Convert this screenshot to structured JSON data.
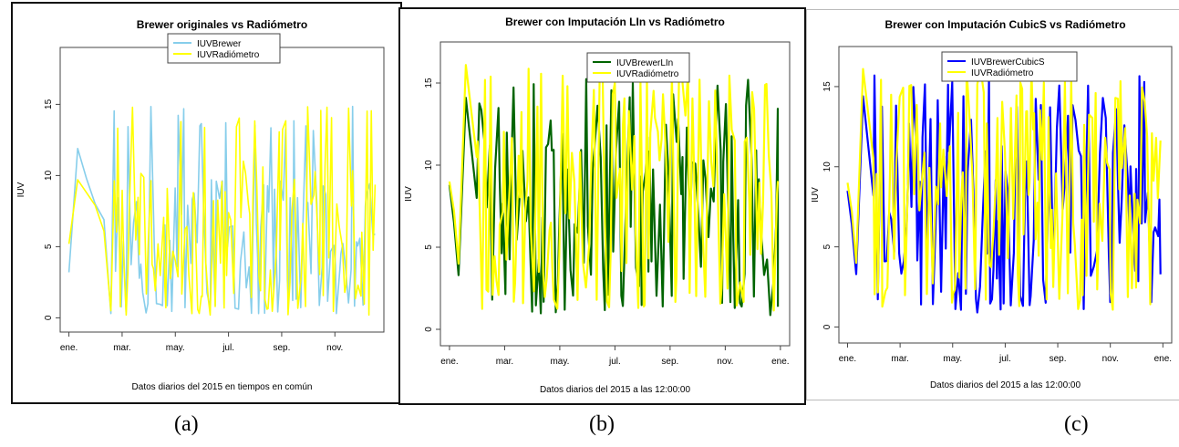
{
  "chart_data": [
    {
      "type": "line",
      "title": "Brewer originales vs Radiómetro",
      "xlabel": "Datos diarios del 2015 en tiempos en común",
      "ylabel": "IUV",
      "xticks": [
        "ene.",
        "mar.",
        "may.",
        "jul.",
        "sep.",
        "nov."
      ],
      "yticks": [
        "0",
        "5",
        "10",
        "15"
      ],
      "ylim": [
        -1,
        19
      ],
      "xlim_days": [
        -10,
        360
      ],
      "legend_position": "top-center",
      "series": [
        {
          "name": "IUVBrewer",
          "color": "#87CEEB",
          "seed": 11,
          "base": 5,
          "amp": 5,
          "min": 0.3,
          "max": 15,
          "x": [
            0,
            10,
            20,
            30,
            40,
            48
          ],
          "values": [
            3.2,
            11.9,
            9.8,
            8.0,
            6.9,
            0.3
          ]
        },
        {
          "name": "IUVRadiómetro",
          "color": "#FFFF00",
          "seed": 23,
          "base": 5.5,
          "amp": 6,
          "min": 0.2,
          "max": 15,
          "x": [
            0,
            10,
            20,
            30,
            40,
            48
          ],
          "values": [
            5.2,
            9.7,
            8.8,
            7.9,
            6.1,
            0.5
          ]
        }
      ]
    },
    {
      "type": "line",
      "title": "Brewer con Imputación LIn vs Radiómetro",
      "xlabel": "Datos diarios del 2015 a las 12:00:00",
      "ylabel": "IUV",
      "xticks": [
        "ene.",
        "mar.",
        "may.",
        "jul.",
        "sep.",
        "nov.",
        "ene."
      ],
      "yticks": [
        "0",
        "5",
        "10",
        "15"
      ],
      "ylim": [
        -1,
        17.5
      ],
      "xlim_days": [
        -10,
        375
      ],
      "legend_position": "top-center",
      "series": [
        {
          "name": "IUVBrewerLIn",
          "color": "#006400",
          "seed": 37,
          "base": 7.5,
          "amp": 6.5,
          "min": 0.8,
          "max": 15.5,
          "x": [
            0,
            5,
            10,
            18,
            30
          ],
          "values": [
            8.8,
            6.5,
            3.3,
            14.1,
            8.0
          ]
        },
        {
          "name": "IUVRadiómetro",
          "color": "#FFFF00",
          "seed": 53,
          "base": 8.5,
          "amp": 7,
          "min": 1.0,
          "max": 16.3,
          "x": [
            0,
            5,
            10,
            18,
            30
          ],
          "values": [
            9.0,
            7.2,
            4.0,
            16.1,
            10.5
          ]
        }
      ]
    },
    {
      "type": "line",
      "title": "Brewer con Imputación CubicS vs Radiómetro",
      "xlabel": "Datos diarios del 2015 a las 12:00:00",
      "ylabel": "IUV",
      "xticks": [
        "ene.",
        "mar.",
        "may.",
        "jul.",
        "sep.",
        "nov.",
        "ene."
      ],
      "yticks": [
        "0",
        "5",
        "10",
        "15"
      ],
      "ylim": [
        -1,
        17.5
      ],
      "xlim_days": [
        -10,
        375
      ],
      "legend_position": "top-center",
      "series": [
        {
          "name": "IUVBrewerCubicS",
          "color": "#0000FF",
          "seed": 71,
          "base": 7.5,
          "amp": 6.5,
          "min": 0.8,
          "max": 15.7,
          "x": [
            0,
            5,
            10,
            18,
            30
          ],
          "values": [
            8.5,
            6.4,
            3.3,
            14.4,
            8.2
          ]
        },
        {
          "name": "IUVRadiómetro",
          "color": "#FFFF00",
          "seed": 89,
          "base": 8.5,
          "amp": 7,
          "min": 1.0,
          "max": 16.2,
          "x": [
            0,
            5,
            10,
            18,
            30
          ],
          "values": [
            9.0,
            7.2,
            4.0,
            16.1,
            10.5
          ]
        }
      ]
    }
  ],
  "captions": [
    "(a)",
    "(b)",
    "(c)"
  ]
}
